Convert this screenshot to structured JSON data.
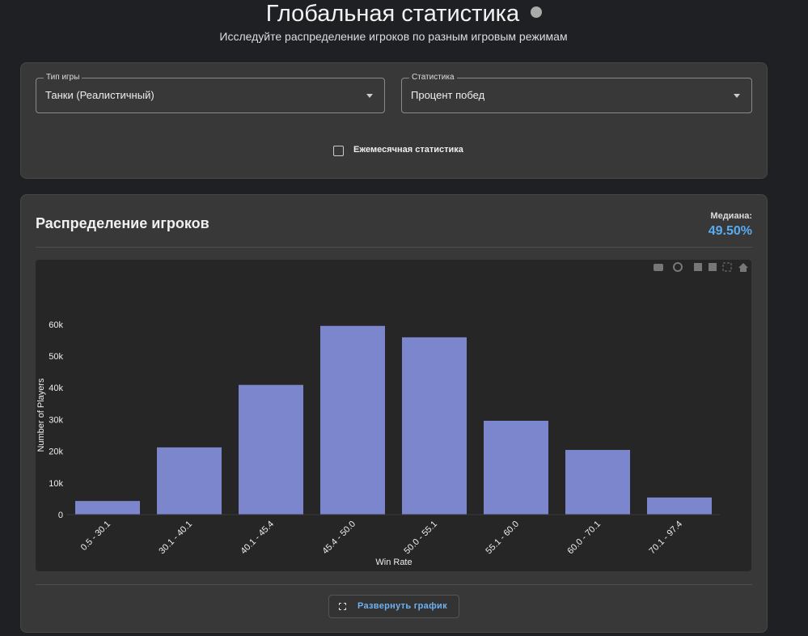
{
  "header": {
    "title": "Глобальная статистика",
    "subtitle": "Исследуйте распределение игроков по разным игровым режимам"
  },
  "filters": {
    "game_type": {
      "label": "Тип игры",
      "value": "Танки (Реалистичный)"
    },
    "statistic": {
      "label": "Статистика",
      "value": "Процент побед"
    },
    "monthly": {
      "label": "Ежемесячная статистика",
      "checked": false
    }
  },
  "panel": {
    "title": "Распределение игроков",
    "median_label": "Медиана:",
    "median_value": "49.50%",
    "expand_button": "Развернуть график"
  },
  "chart_data": {
    "type": "bar",
    "x_label": "Win Rate",
    "y_label": "Number of Players",
    "categories": [
      "0.5 - 30.1",
      "30.1 - 40.1",
      "40.1 - 45.4",
      "45.4 - 50.0",
      "50.0 - 55.1",
      "55.1 - 60.0",
      "60.0 - 70.1",
      "70.1 - 97.4"
    ],
    "values": [
      4300,
      21200,
      40900,
      59500,
      55900,
      29600,
      20400,
      5400
    ],
    "color": "#7b86cc",
    "ylim": [
      0,
      75000
    ],
    "yticks": [
      0,
      {
        "value": 10000,
        "label": "10k"
      },
      {
        "value": 20000,
        "label": "20k"
      },
      {
        "value": 30000,
        "label": "30k"
      },
      {
        "value": 40000,
        "label": "40k"
      },
      {
        "value": 50000,
        "label": "50k"
      },
      {
        "value": 60000,
        "label": "60k"
      }
    ],
    "grid": false
  }
}
